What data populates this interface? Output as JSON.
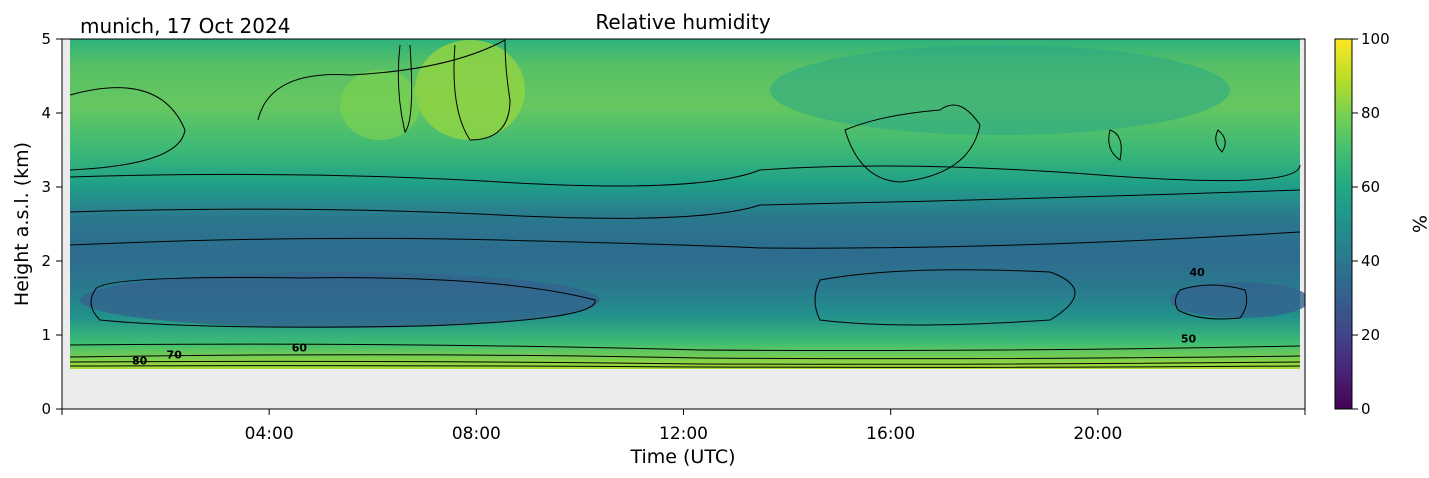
{
  "chart_data": {
    "type": "heatmap",
    "title": "Relative humidity",
    "location_date": "munich, 17 Oct 2024",
    "xlabel": "Time (UTC)",
    "ylabel": "Height a.s.l. (km)",
    "xlim": [
      "00:00",
      "24:00"
    ],
    "ylim": [
      0,
      5
    ],
    "x_ticks": [
      "04:00",
      "08:00",
      "12:00",
      "16:00",
      "20:00"
    ],
    "y_ticks": [
      "0",
      "1",
      "2",
      "3",
      "4",
      "5"
    ],
    "data_min_height_km": 0.55,
    "colorbar": {
      "label": "%",
      "min": 0,
      "max": 100,
      "ticks": [
        "0",
        "20",
        "40",
        "60",
        "80",
        "100"
      ],
      "colormap": "viridis"
    },
    "contour_labels": [
      {
        "text": "80",
        "time": "01:30",
        "height_km": 0.6
      },
      {
        "text": "70",
        "time": "02:10",
        "height_km": 0.68
      },
      {
        "text": "60",
        "time": "04:35",
        "height_km": 0.78
      },
      {
        "text": "50",
        "time": "21:45",
        "height_km": 0.9
      },
      {
        "text": "40",
        "time": "21:55",
        "height_km": 1.8
      }
    ],
    "grid": false,
    "missing_color": "#ececec"
  }
}
